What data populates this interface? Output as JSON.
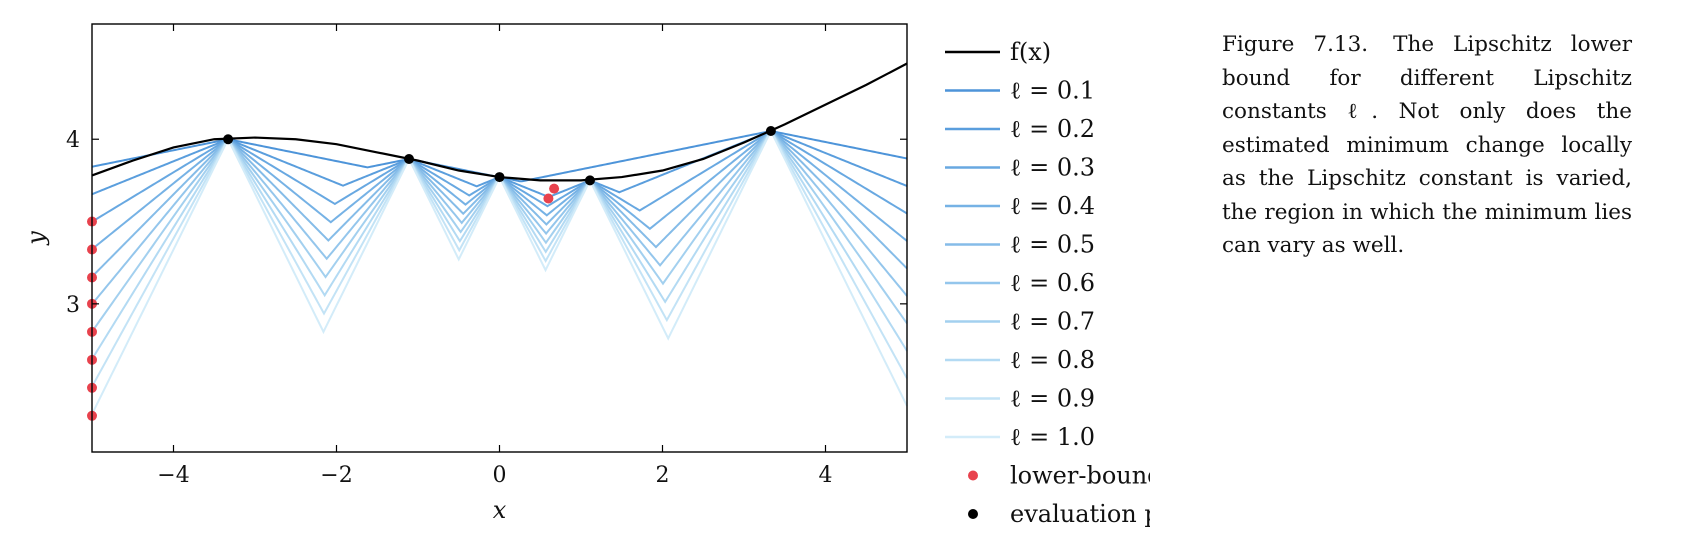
{
  "caption": {
    "figure_number": "Figure 7.13.",
    "text": "The Lipschitz lower bound for different Lipschitz constants ℓ. Not only does the estimated minimum change locally as the Lipschitz constant is varied, the region in which the minimum lies can vary as well."
  },
  "chart_data": {
    "type": "line",
    "xlabel": "x",
    "ylabel": "y",
    "xlim": [
      -5,
      5
    ],
    "ylim": [
      2.1,
      4.7
    ],
    "xticks": [
      -4,
      -2,
      0,
      2,
      4
    ],
    "xtick_labels": [
      "−4",
      "−2",
      "0",
      "2",
      "4"
    ],
    "yticks": [
      3,
      4
    ],
    "ytick_labels": [
      "3",
      "4"
    ],
    "grid": false,
    "legend_placement": "outside-right",
    "function": {
      "name": "f(x)",
      "x": [
        -5,
        -4.5,
        -4,
        -3.5,
        -3,
        -2.5,
        -2,
        -1.5,
        -1,
        -0.5,
        0,
        0.5,
        1,
        1.5,
        2,
        2.5,
        3,
        3.5,
        4,
        4.5,
        5
      ],
      "y": [
        3.78,
        3.87,
        3.95,
        4.0,
        4.01,
        4.0,
        3.97,
        3.92,
        3.87,
        3.81,
        3.77,
        3.75,
        3.75,
        3.77,
        3.81,
        3.88,
        3.98,
        4.09,
        4.21,
        4.33,
        4.46
      ],
      "color": "#000000"
    },
    "evaluation_points": {
      "label": "evaluation points",
      "color": "#000000",
      "x": [
        -3.33,
        -1.11,
        0.0,
        1.11,
        3.33
      ],
      "y": [
        4.0,
        3.88,
        3.77,
        3.75,
        4.05
      ]
    },
    "lower_bound_series": [
      {
        "name": "ℓ = 0.1",
        "lipschitz": 0.1,
        "color": "#4d94d9"
      },
      {
        "name": "ℓ = 0.2",
        "lipschitz": 0.2,
        "color": "#5a9edd"
      },
      {
        "name": "ℓ = 0.3",
        "lipschitz": 0.3,
        "color": "#68a8e1"
      },
      {
        "name": "ℓ = 0.4",
        "lipschitz": 0.4,
        "color": "#76b2e5"
      },
      {
        "name": "ℓ = 0.5",
        "lipschitz": 0.5,
        "color": "#85bce8"
      },
      {
        "name": "ℓ = 0.6",
        "lipschitz": 0.6,
        "color": "#94c6ec"
      },
      {
        "name": "ℓ = 0.7",
        "lipschitz": 0.7,
        "color": "#a3d0ef"
      },
      {
        "name": "ℓ = 0.8",
        "lipschitz": 0.8,
        "color": "#b3daf3"
      },
      {
        "name": "ℓ = 0.9",
        "lipschitz": 0.9,
        "color": "#c3e3f6"
      },
      {
        "name": "ℓ = 1.0",
        "lipschitz": 1.0,
        "color": "#d3ecf9"
      }
    ],
    "lower_bound_minima": {
      "label": "lower-bound minima",
      "color": "#e8424d",
      "x": [
        0.6,
        0.67,
        -5,
        -5,
        -5,
        -5,
        -5,
        -5,
        -5,
        -5
      ],
      "y": [
        3.64,
        3.7,
        3.5,
        3.33,
        3.16,
        3.0,
        2.83,
        2.66,
        2.49,
        2.32
      ]
    }
  }
}
